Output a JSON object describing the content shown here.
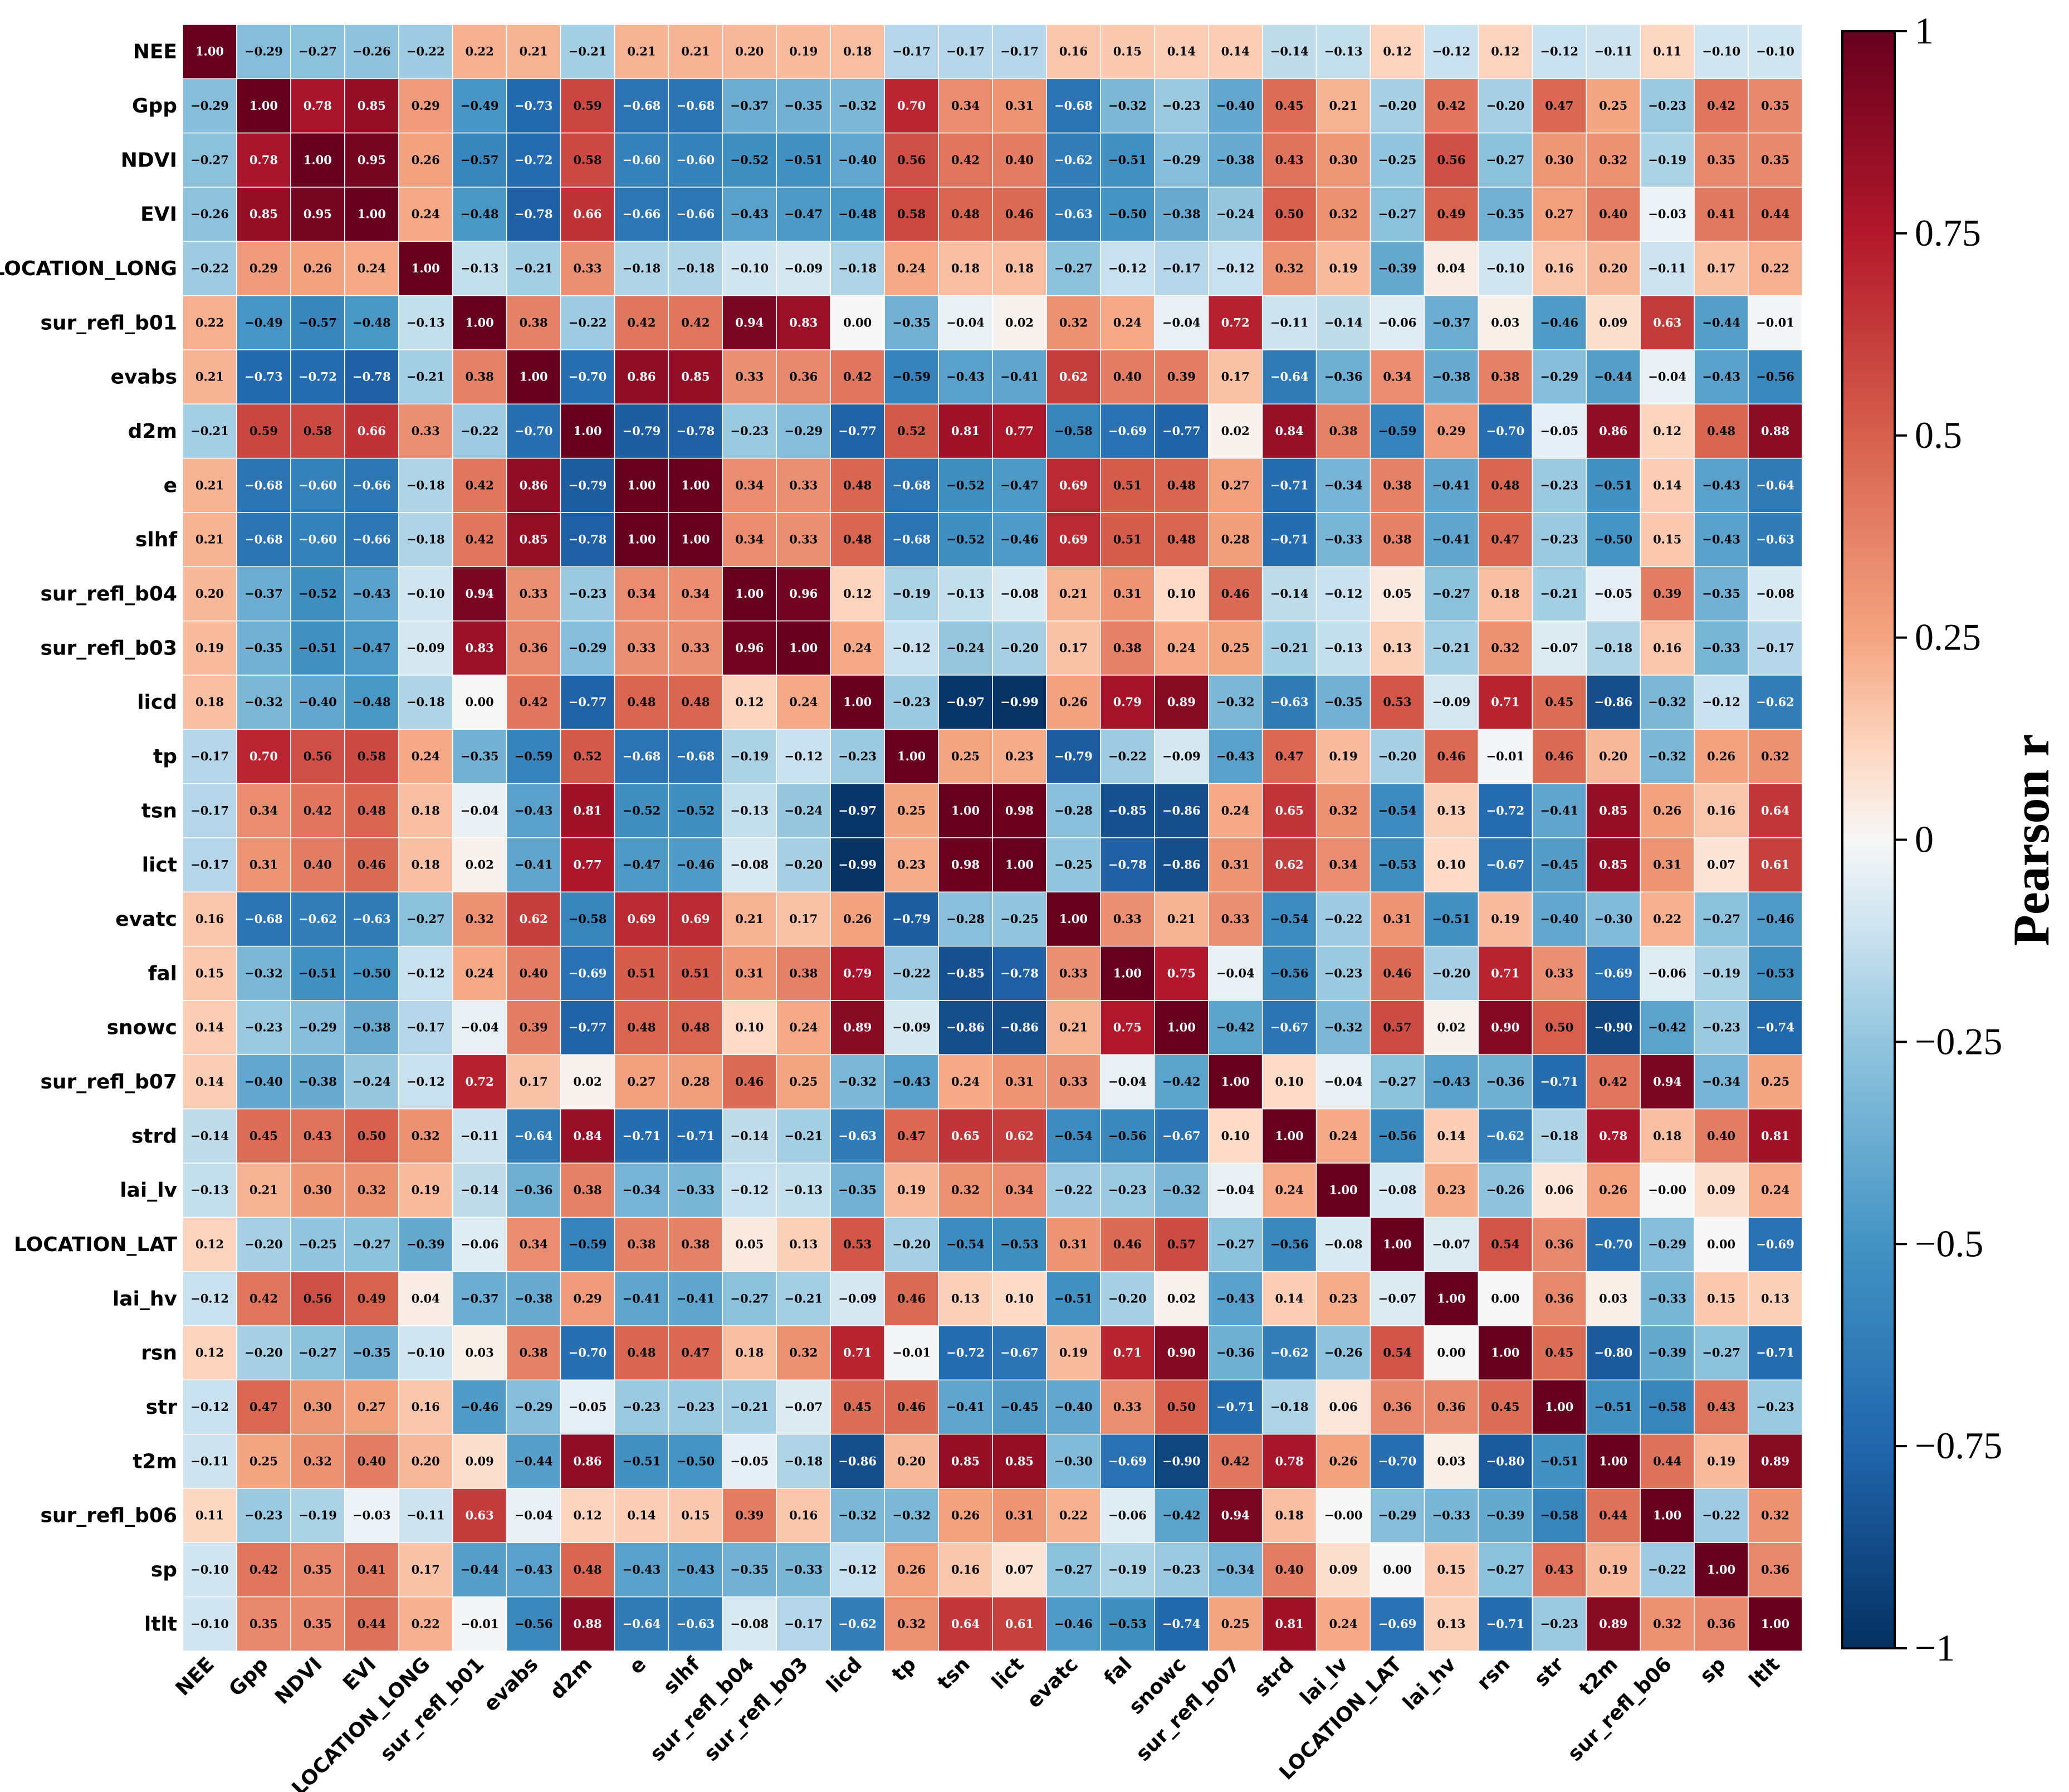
{
  "chart_data": {
    "type": "heatmap",
    "title": "",
    "colorbar_label": "Pearson r",
    "colorbar_range": [
      -1,
      1
    ],
    "colorbar_ticks": [
      1,
      0.75,
      0.5,
      0.25,
      0,
      -0.25,
      -0.5,
      -0.75,
      -1
    ],
    "colorbar_tick_labels": [
      "1",
      "0.75",
      "0.5",
      "0.25",
      "0",
      "−0.25",
      "−0.5",
      "−0.75",
      "−1"
    ],
    "colormap": "RdBu_r",
    "colors": {
      "pos_max": "#67001f",
      "zero": "#f7f7f7",
      "neg_max": "#053061"
    },
    "labels": [
      "NEE",
      "Gpp",
      "NDVI",
      "EVI",
      "LOCATION_LONG",
      "sur_refl_b01",
      "evabs",
      "d2m",
      "e",
      "slhf",
      "sur_refl_b04",
      "sur_refl_b03",
      "licd",
      "tp",
      "tsn",
      "lict",
      "evatc",
      "fal",
      "snowc",
      "sur_refl_b07",
      "strd",
      "lai_lv",
      "LOCATION_LAT",
      "lai_hv",
      "rsn",
      "str",
      "t2m",
      "sur_refl_b06",
      "sp",
      "ltlt"
    ],
    "values": [
      [
        "1.00",
        "-0.29",
        "-0.27",
        "-0.26",
        "-0.22",
        "0.22",
        "0.21",
        "-0.21",
        "0.21",
        "0.21",
        "0.20",
        "0.19",
        "0.18",
        "-0.17",
        "-0.17",
        "-0.17",
        "0.16",
        "0.15",
        "0.14",
        "0.14",
        "-0.14",
        "-0.13",
        "0.12",
        "-0.12",
        "0.12",
        "-0.12",
        "-0.11",
        "0.11",
        "-0.10",
        "-0.10"
      ],
      [
        "-0.29",
        "1.00",
        "0.78",
        "0.85",
        "0.29",
        "-0.49",
        "-0.73",
        "0.59",
        "-0.68",
        "-0.68",
        "-0.37",
        "-0.35",
        "-0.32",
        "0.70",
        "0.34",
        "0.31",
        "-0.68",
        "-0.32",
        "-0.23",
        "-0.40",
        "0.45",
        "0.21",
        "-0.20",
        "0.42",
        "-0.20",
        "0.47",
        "0.25",
        "-0.23",
        "0.42",
        "0.35"
      ],
      [
        "-0.27",
        "0.78",
        "1.00",
        "0.95",
        "0.26",
        "-0.57",
        "-0.72",
        "0.58",
        "-0.60",
        "-0.60",
        "-0.52",
        "-0.51",
        "-0.40",
        "0.56",
        "0.42",
        "0.40",
        "-0.62",
        "-0.51",
        "-0.29",
        "-0.38",
        "0.43",
        "0.30",
        "-0.25",
        "0.56",
        "-0.27",
        "0.30",
        "0.32",
        "-0.19",
        "0.35",
        "0.35"
      ],
      [
        "-0.26",
        "0.85",
        "0.95",
        "1.00",
        "0.24",
        "-0.48",
        "-0.78",
        "0.66",
        "-0.66",
        "-0.66",
        "-0.43",
        "-0.47",
        "-0.48",
        "0.58",
        "0.48",
        "0.46",
        "-0.63",
        "-0.50",
        "-0.38",
        "-0.24",
        "0.50",
        "0.32",
        "-0.27",
        "0.49",
        "-0.35",
        "0.27",
        "0.40",
        "-0.03",
        "0.41",
        "0.44"
      ],
      [
        "-0.22",
        "0.29",
        "0.26",
        "0.24",
        "1.00",
        "-0.13",
        "-0.21",
        "0.33",
        "-0.18",
        "-0.18",
        "-0.10",
        "-0.09",
        "-0.18",
        "0.24",
        "0.18",
        "0.18",
        "-0.27",
        "-0.12",
        "-0.17",
        "-0.12",
        "0.32",
        "0.19",
        "-0.39",
        "0.04",
        "-0.10",
        "0.16",
        "0.20",
        "-0.11",
        "0.17",
        "0.22"
      ],
      [
        "0.22",
        "-0.49",
        "-0.57",
        "-0.48",
        "-0.13",
        "1.00",
        "0.38",
        "-0.22",
        "0.42",
        "0.42",
        "0.94",
        "0.83",
        "0.00",
        "-0.35",
        "-0.04",
        "0.02",
        "0.32",
        "0.24",
        "-0.04",
        "0.72",
        "-0.11",
        "-0.14",
        "-0.06",
        "-0.37",
        "0.03",
        "-0.46",
        "0.09",
        "0.63",
        "-0.44",
        "-0.01"
      ],
      [
        "0.21",
        "-0.73",
        "-0.72",
        "-0.78",
        "-0.21",
        "0.38",
        "1.00",
        "-0.70",
        "0.86",
        "0.85",
        "0.33",
        "0.36",
        "0.42",
        "-0.59",
        "-0.43",
        "-0.41",
        "0.62",
        "0.40",
        "0.39",
        "0.17",
        "-0.64",
        "-0.36",
        "0.34",
        "-0.38",
        "0.38",
        "-0.29",
        "-0.44",
        "-0.04",
        "-0.43",
        "-0.56"
      ],
      [
        "-0.21",
        "0.59",
        "0.58",
        "0.66",
        "0.33",
        "-0.22",
        "-0.70",
        "1.00",
        "-0.79",
        "-0.78",
        "-0.23",
        "-0.29",
        "-0.77",
        "0.52",
        "0.81",
        "0.77",
        "-0.58",
        "-0.69",
        "-0.77",
        "0.02",
        "0.84",
        "0.38",
        "-0.59",
        "0.29",
        "-0.70",
        "-0.05",
        "0.86",
        "0.12",
        "0.48",
        "0.88"
      ],
      [
        "0.21",
        "-0.68",
        "-0.60",
        "-0.66",
        "-0.18",
        "0.42",
        "0.86",
        "-0.79",
        "1.00",
        "1.00",
        "0.34",
        "0.33",
        "0.48",
        "-0.68",
        "-0.52",
        "-0.47",
        "0.69",
        "0.51",
        "0.48",
        "0.27",
        "-0.71",
        "-0.34",
        "0.38",
        "-0.41",
        "0.48",
        "-0.23",
        "-0.51",
        "0.14",
        "-0.43",
        "-0.64"
      ],
      [
        "0.21",
        "-0.68",
        "-0.60",
        "-0.66",
        "-0.18",
        "0.42",
        "0.85",
        "-0.78",
        "1.00",
        "1.00",
        "0.34",
        "0.33",
        "0.48",
        "-0.68",
        "-0.52",
        "-0.46",
        "0.69",
        "0.51",
        "0.48",
        "0.28",
        "-0.71",
        "-0.33",
        "0.38",
        "-0.41",
        "0.47",
        "-0.23",
        "-0.50",
        "0.15",
        "-0.43",
        "-0.63"
      ],
      [
        "0.20",
        "-0.37",
        "-0.52",
        "-0.43",
        "-0.10",
        "0.94",
        "0.33",
        "-0.23",
        "0.34",
        "0.34",
        "1.00",
        "0.96",
        "0.12",
        "-0.19",
        "-0.13",
        "-0.08",
        "0.21",
        "0.31",
        "0.10",
        "0.46",
        "-0.14",
        "-0.12",
        "0.05",
        "-0.27",
        "0.18",
        "-0.21",
        "-0.05",
        "0.39",
        "-0.35",
        "-0.08"
      ],
      [
        "0.19",
        "-0.35",
        "-0.51",
        "-0.47",
        "-0.09",
        "0.83",
        "0.36",
        "-0.29",
        "0.33",
        "0.33",
        "0.96",
        "1.00",
        "0.24",
        "-0.12",
        "-0.24",
        "-0.20",
        "0.17",
        "0.38",
        "0.24",
        "0.25",
        "-0.21",
        "-0.13",
        "0.13",
        "-0.21",
        "0.32",
        "-0.07",
        "-0.18",
        "0.16",
        "-0.33",
        "-0.17"
      ],
      [
        "0.18",
        "-0.32",
        "-0.40",
        "-0.48",
        "-0.18",
        "0.00",
        "0.42",
        "-0.77",
        "0.48",
        "0.48",
        "0.12",
        "0.24",
        "1.00",
        "-0.23",
        "-0.97",
        "-0.99",
        "0.26",
        "0.79",
        "0.89",
        "-0.32",
        "-0.63",
        "-0.35",
        "0.53",
        "-0.09",
        "0.71",
        "0.45",
        "-0.86",
        "-0.32",
        "-0.12",
        "-0.62"
      ],
      [
        "-0.17",
        "0.70",
        "0.56",
        "0.58",
        "0.24",
        "-0.35",
        "-0.59",
        "0.52",
        "-0.68",
        "-0.68",
        "-0.19",
        "-0.12",
        "-0.23",
        "1.00",
        "0.25",
        "0.23",
        "-0.79",
        "-0.22",
        "-0.09",
        "-0.43",
        "0.47",
        "0.19",
        "-0.20",
        "0.46",
        "-0.01",
        "0.46",
        "0.20",
        "-0.32",
        "0.26",
        "0.32"
      ],
      [
        "-0.17",
        "0.34",
        "0.42",
        "0.48",
        "0.18",
        "-0.04",
        "-0.43",
        "0.81",
        "-0.52",
        "-0.52",
        "-0.13",
        "-0.24",
        "-0.97",
        "0.25",
        "1.00",
        "0.98",
        "-0.28",
        "-0.85",
        "-0.86",
        "0.24",
        "0.65",
        "0.32",
        "-0.54",
        "0.13",
        "-0.72",
        "-0.41",
        "0.85",
        "0.26",
        "0.16",
        "0.64"
      ],
      [
        "-0.17",
        "0.31",
        "0.40",
        "0.46",
        "0.18",
        "0.02",
        "-0.41",
        "0.77",
        "-0.47",
        "-0.46",
        "-0.08",
        "-0.20",
        "-0.99",
        "0.23",
        "0.98",
        "1.00",
        "-0.25",
        "-0.78",
        "-0.86",
        "0.31",
        "0.62",
        "0.34",
        "-0.53",
        "0.10",
        "-0.67",
        "-0.45",
        "0.85",
        "0.31",
        "0.07",
        "0.61"
      ],
      [
        "0.16",
        "-0.68",
        "-0.62",
        "-0.63",
        "-0.27",
        "0.32",
        "0.62",
        "-0.58",
        "0.69",
        "0.69",
        "0.21",
        "0.17",
        "0.26",
        "-0.79",
        "-0.28",
        "-0.25",
        "1.00",
        "0.33",
        "0.21",
        "0.33",
        "-0.54",
        "-0.22",
        "0.31",
        "-0.51",
        "0.19",
        "-0.40",
        "-0.30",
        "0.22",
        "-0.27",
        "-0.46"
      ],
      [
        "0.15",
        "-0.32",
        "-0.51",
        "-0.50",
        "-0.12",
        "0.24",
        "0.40",
        "-0.69",
        "0.51",
        "0.51",
        "0.31",
        "0.38",
        "0.79",
        "-0.22",
        "-0.85",
        "-0.78",
        "0.33",
        "1.00",
        "0.75",
        "-0.04",
        "-0.56",
        "-0.23",
        "0.46",
        "-0.20",
        "0.71",
        "0.33",
        "-0.69",
        "-0.06",
        "-0.19",
        "-0.53"
      ],
      [
        "0.14",
        "-0.23",
        "-0.29",
        "-0.38",
        "-0.17",
        "-0.04",
        "0.39",
        "-0.77",
        "0.48",
        "0.48",
        "0.10",
        "0.24",
        "0.89",
        "-0.09",
        "-0.86",
        "-0.86",
        "0.21",
        "0.75",
        "1.00",
        "-0.42",
        "-0.67",
        "-0.32",
        "0.57",
        "0.02",
        "0.90",
        "0.50",
        "-0.90",
        "-0.42",
        "-0.23",
        "-0.74"
      ],
      [
        "0.14",
        "-0.40",
        "-0.38",
        "-0.24",
        "-0.12",
        "0.72",
        "0.17",
        "0.02",
        "0.27",
        "0.28",
        "0.46",
        "0.25",
        "-0.32",
        "-0.43",
        "0.24",
        "0.31",
        "0.33",
        "-0.04",
        "-0.42",
        "1.00",
        "0.10",
        "-0.04",
        "-0.27",
        "-0.43",
        "-0.36",
        "-0.71",
        "0.42",
        "0.94",
        "-0.34",
        "0.25"
      ],
      [
        "-0.14",
        "0.45",
        "0.43",
        "0.50",
        "0.32",
        "-0.11",
        "-0.64",
        "0.84",
        "-0.71",
        "-0.71",
        "-0.14",
        "-0.21",
        "-0.63",
        "0.47",
        "0.65",
        "0.62",
        "-0.54",
        "-0.56",
        "-0.67",
        "0.10",
        "1.00",
        "0.24",
        "-0.56",
        "0.14",
        "-0.62",
        "-0.18",
        "0.78",
        "0.18",
        "0.40",
        "0.81"
      ],
      [
        "-0.13",
        "0.21",
        "0.30",
        "0.32",
        "0.19",
        "-0.14",
        "-0.36",
        "0.38",
        "-0.34",
        "-0.33",
        "-0.12",
        "-0.13",
        "-0.35",
        "0.19",
        "0.32",
        "0.34",
        "-0.22",
        "-0.23",
        "-0.32",
        "-0.04",
        "0.24",
        "1.00",
        "-0.08",
        "0.23",
        "-0.26",
        "0.06",
        "0.26",
        "-0.00",
        "0.09",
        "0.24"
      ],
      [
        "0.12",
        "-0.20",
        "-0.25",
        "-0.27",
        "-0.39",
        "-0.06",
        "0.34",
        "-0.59",
        "0.38",
        "0.38",
        "0.05",
        "0.13",
        "0.53",
        "-0.20",
        "-0.54",
        "-0.53",
        "0.31",
        "0.46",
        "0.57",
        "-0.27",
        "-0.56",
        "-0.08",
        "1.00",
        "-0.07",
        "0.54",
        "0.36",
        "-0.70",
        "-0.29",
        "0.00",
        "-0.69"
      ],
      [
        "-0.12",
        "0.42",
        "0.56",
        "0.49",
        "0.04",
        "-0.37",
        "-0.38",
        "0.29",
        "-0.41",
        "-0.41",
        "-0.27",
        "-0.21",
        "-0.09",
        "0.46",
        "0.13",
        "0.10",
        "-0.51",
        "-0.20",
        "0.02",
        "-0.43",
        "0.14",
        "0.23",
        "-0.07",
        "1.00",
        "0.00",
        "0.36",
        "0.03",
        "-0.33",
        "0.15",
        "0.13"
      ],
      [
        "0.12",
        "-0.20",
        "-0.27",
        "-0.35",
        "-0.10",
        "0.03",
        "0.38",
        "-0.70",
        "0.48",
        "0.47",
        "0.18",
        "0.32",
        "0.71",
        "-0.01",
        "-0.72",
        "-0.67",
        "0.19",
        "0.71",
        "0.90",
        "-0.36",
        "-0.62",
        "-0.26",
        "0.54",
        "0.00",
        "1.00",
        "0.45",
        "-0.80",
        "-0.39",
        "-0.27",
        "-0.71"
      ],
      [
        "-0.12",
        "0.47",
        "0.30",
        "0.27",
        "0.16",
        "-0.46",
        "-0.29",
        "-0.05",
        "-0.23",
        "-0.23",
        "-0.21",
        "-0.07",
        "0.45",
        "0.46",
        "-0.41",
        "-0.45",
        "-0.40",
        "0.33",
        "0.50",
        "-0.71",
        "-0.18",
        "0.06",
        "0.36",
        "0.36",
        "0.45",
        "1.00",
        "-0.51",
        "-0.58",
        "0.43",
        "-0.23"
      ],
      [
        "-0.11",
        "0.25",
        "0.32",
        "0.40",
        "0.20",
        "0.09",
        "-0.44",
        "0.86",
        "-0.51",
        "-0.50",
        "-0.05",
        "-0.18",
        "-0.86",
        "0.20",
        "0.85",
        "0.85",
        "-0.30",
        "-0.69",
        "-0.90",
        "0.42",
        "0.78",
        "0.26",
        "-0.70",
        "0.03",
        "-0.80",
        "-0.51",
        "1.00",
        "0.44",
        "0.19",
        "0.89"
      ],
      [
        "0.11",
        "-0.23",
        "-0.19",
        "-0.03",
        "-0.11",
        "0.63",
        "-0.04",
        "0.12",
        "0.14",
        "0.15",
        "0.39",
        "0.16",
        "-0.32",
        "-0.32",
        "0.26",
        "0.31",
        "0.22",
        "-0.06",
        "-0.42",
        "0.94",
        "0.18",
        "-0.00",
        "-0.29",
        "-0.33",
        "-0.39",
        "-0.58",
        "0.44",
        "1.00",
        "-0.22",
        "0.32"
      ],
      [
        "-0.10",
        "0.42",
        "0.35",
        "0.41",
        "0.17",
        "-0.44",
        "-0.43",
        "0.48",
        "-0.43",
        "-0.43",
        "-0.35",
        "-0.33",
        "-0.12",
        "0.26",
        "0.16",
        "0.07",
        "-0.27",
        "-0.19",
        "-0.23",
        "-0.34",
        "0.40",
        "0.09",
        "0.00",
        "0.15",
        "-0.27",
        "0.43",
        "0.19",
        "-0.22",
        "1.00",
        "0.36"
      ],
      [
        "-0.10",
        "0.35",
        "0.35",
        "0.44",
        "0.22",
        "-0.01",
        "-0.56",
        "0.88",
        "-0.64",
        "-0.63",
        "-0.08",
        "-0.17",
        "-0.62",
        "0.32",
        "0.64",
        "0.61",
        "-0.46",
        "-0.53",
        "-0.74",
        "0.25",
        "0.81",
        "0.24",
        "-0.69",
        "0.13",
        "-0.71",
        "-0.23",
        "0.89",
        "0.32",
        "0.36",
        "1.00"
      ]
    ]
  }
}
